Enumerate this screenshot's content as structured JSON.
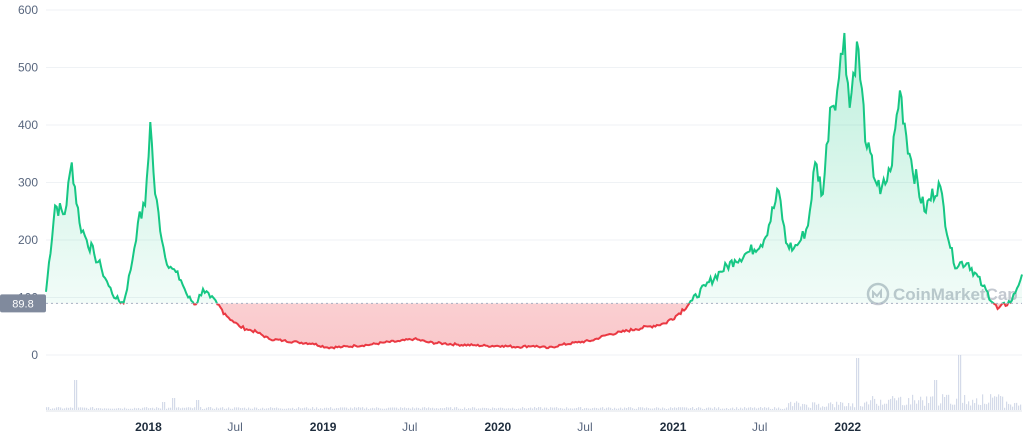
{
  "watermark": "CoinMarketCap",
  "chart_data": {
    "type": "line",
    "title": "",
    "xlabel": "",
    "ylabel": "",
    "ylim": [
      0,
      600
    ],
    "y_ticks": [
      "0",
      "100",
      "200",
      "300",
      "400",
      "500",
      "600"
    ],
    "x_ticks": [
      {
        "label": "2018",
        "date": "2018-01-01",
        "major": true
      },
      {
        "label": "Jul",
        "date": "2018-07-01",
        "major": false
      },
      {
        "label": "2019",
        "date": "2019-01-01",
        "major": true
      },
      {
        "label": "Jul",
        "date": "2019-07-01",
        "major": false
      },
      {
        "label": "2020",
        "date": "2020-01-01",
        "major": true
      },
      {
        "label": "Jul",
        "date": "2020-07-01",
        "major": false
      },
      {
        "label": "2021",
        "date": "2021-01-01",
        "major": true
      },
      {
        "label": "Jul",
        "date": "2021-07-01",
        "major": false
      },
      {
        "label": "2022",
        "date": "2022-01-01",
        "major": true
      }
    ],
    "x_range": [
      "2017-06-01",
      "2022-12-31"
    ],
    "grid": true,
    "reference_value": 89.8,
    "reference_label": "89.8",
    "colors": {
      "above": "#16c784",
      "below": "#ea3943",
      "grid": "#eff2f5",
      "volume": "#c2cbe0",
      "ref_label_bg": "#808a9d"
    },
    "series": [
      {
        "x": [
          "2017-06-01",
          "2017-06-20",
          "2017-07-10",
          "2017-07-25",
          "2017-08-10",
          "2017-08-25",
          "2017-09-10",
          "2017-09-25",
          "2017-10-10",
          "2017-10-25",
          "2017-11-10",
          "2017-11-25",
          "2017-12-10",
          "2017-12-25",
          "2018-01-05",
          "2018-01-15",
          "2018-02-05",
          "2018-02-20",
          "2018-03-10",
          "2018-03-25",
          "2018-04-10",
          "2018-04-25",
          "2018-05-10",
          "2018-05-25",
          "2018-06-10",
          "2018-06-25",
          "2018-07-10",
          "2018-07-25",
          "2018-08-15",
          "2018-09-10",
          "2018-10-10",
          "2018-11-10",
          "2018-12-10",
          "2019-01-10",
          "2019-02-10",
          "2019-03-10",
          "2019-04-10",
          "2019-05-10",
          "2019-06-10",
          "2019-07-10",
          "2019-08-10",
          "2019-09-10",
          "2019-10-10",
          "2019-11-10",
          "2019-12-10",
          "2020-01-10",
          "2020-02-10",
          "2020-03-15",
          "2020-04-15",
          "2020-05-15",
          "2020-06-15",
          "2020-07-15",
          "2020-08-15",
          "2020-09-15",
          "2020-10-15",
          "2020-11-15",
          "2020-12-15",
          "2021-01-10",
          "2021-02-10",
          "2021-03-10",
          "2021-04-10",
          "2021-05-10",
          "2021-06-10",
          "2021-07-10",
          "2021-08-10",
          "2021-08-25",
          "2021-09-10",
          "2021-09-25",
          "2021-10-10",
          "2021-10-25",
          "2021-11-10",
          "2021-11-25",
          "2021-12-10",
          "2021-12-25",
          "2022-01-05",
          "2022-01-20",
          "2022-02-10",
          "2022-03-10",
          "2022-03-31",
          "2022-04-20",
          "2022-05-10",
          "2022-06-10",
          "2022-07-10",
          "2022-08-10",
          "2022-09-10",
          "2022-10-10",
          "2022-11-10",
          "2022-12-10",
          "2022-12-31"
        ],
        "y": [
          110,
          260,
          245,
          335,
          230,
          200,
          175,
          150,
          120,
          98,
          90,
          148,
          230,
          260,
          405,
          280,
          170,
          150,
          130,
          100,
          88,
          115,
          100,
          88,
          72,
          60,
          50,
          45,
          40,
          28,
          25,
          22,
          20,
          13,
          14,
          16,
          18,
          22,
          24,
          28,
          22,
          20,
          18,
          17,
          16,
          16,
          14,
          16,
          12,
          18,
          22,
          25,
          35,
          40,
          45,
          50,
          55,
          70,
          95,
          120,
          145,
          165,
          180,
          200,
          285,
          195,
          185,
          200,
          225,
          335,
          280,
          430,
          460,
          560,
          430,
          545,
          360,
          280,
          320,
          460,
          350,
          250,
          300,
          160,
          160,
          120,
          80,
          95,
          140
        ]
      }
    ],
    "volume_note": "volume bars along bottom axis, not labeled"
  }
}
